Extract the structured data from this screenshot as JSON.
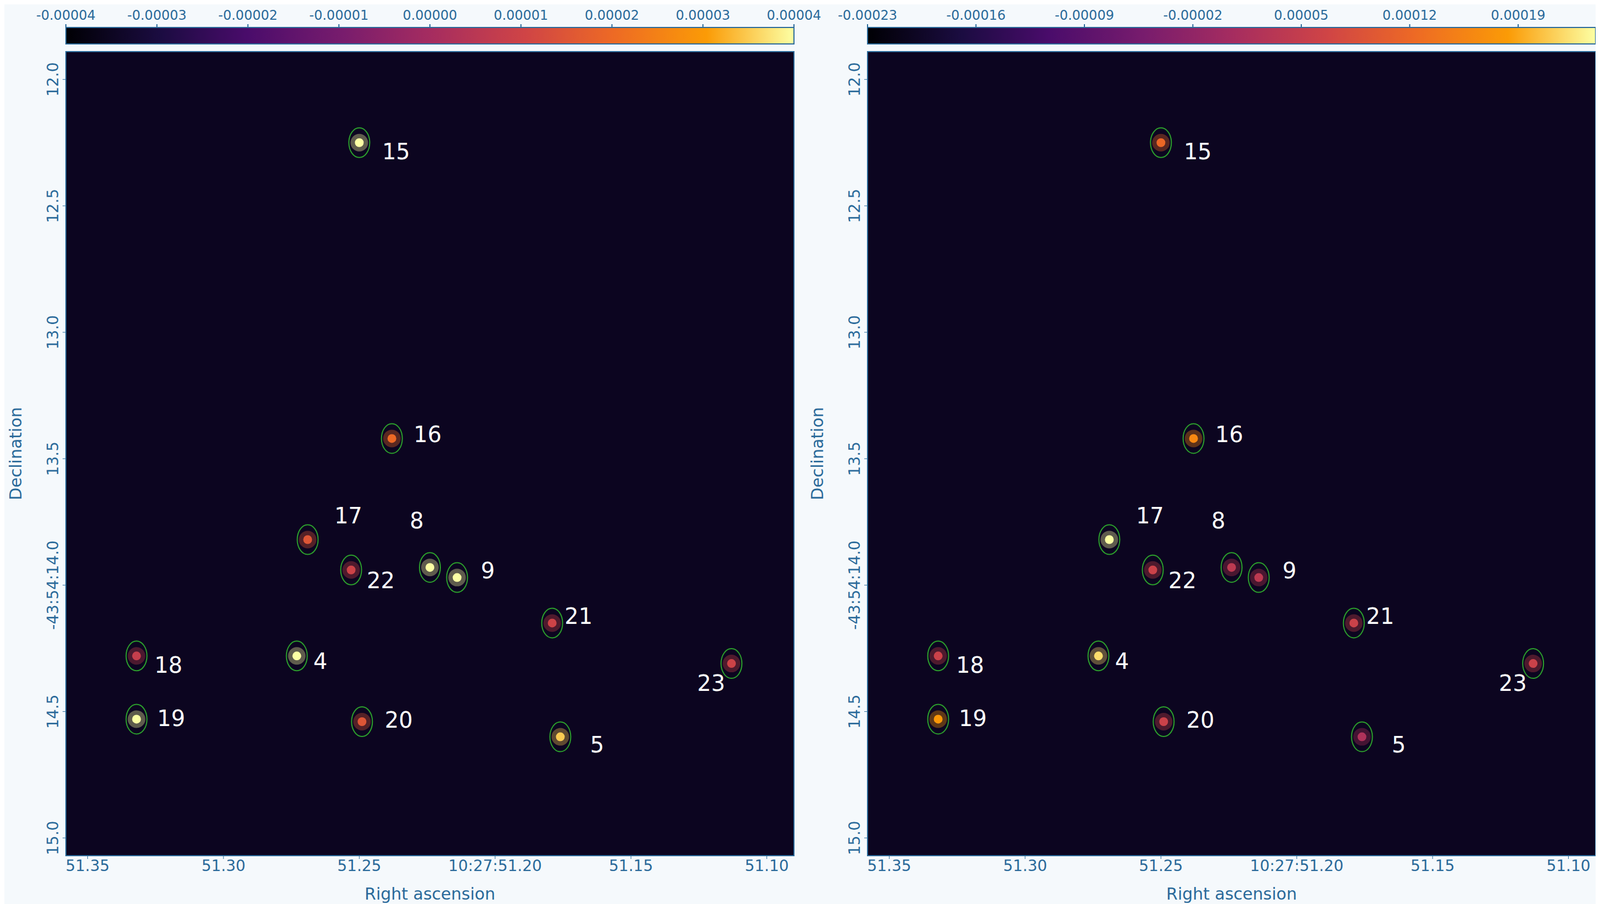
{
  "chart_data": [
    {
      "type": "scatter",
      "xlabel": "Right ascension",
      "ylabel": "Declination",
      "xlim": [
        51.358,
        51.09
      ],
      "xticks": [
        51.35,
        {
          "value": 51.3,
          "label": "51.30"
        },
        51.25,
        {
          "value": 51.2,
          "label": "10:27:51.20"
        },
        51.15,
        {
          "value": 51.1,
          "label": "51.10"
        }
      ],
      "ylim": [
        15.07,
        11.89
      ],
      "yticks": [
        {
          "value": 12,
          "label": "12.0"
        },
        12.5,
        {
          "value": 13,
          "label": "13.0"
        },
        13.5,
        {
          "value": 14,
          "label": "-43:54:14.0"
        },
        14.5,
        {
          "value": 15,
          "label": "15.0"
        }
      ],
      "colorbar": {
        "range": [
          -4e-05,
          4e-05
        ],
        "ticks": [
          {
            "value": -4e-05,
            "label": "-0.00004"
          },
          {
            "value": -3e-05,
            "label": "-0.00003"
          },
          {
            "value": -2e-05,
            "label": "-0.00002"
          },
          {
            "value": -1e-05,
            "label": "-0.00001"
          },
          {
            "value": 0,
            "label": "0.00000"
          },
          {
            "value": 1e-05,
            "label": "0.00001"
          },
          {
            "value": 2e-05,
            "label": "0.00002"
          },
          {
            "value": 3e-05,
            "label": "0.00003"
          },
          {
            "value": 4e-05,
            "label": "0.00004"
          }
        ]
      },
      "sources": {
        "labels": [
          "15",
          "16",
          "17",
          "22",
          "8",
          "9",
          "21",
          "18",
          "4",
          "23",
          "19",
          "20",
          "5"
        ],
        "x": [
          51.25,
          51.238,
          51.269,
          51.253,
          51.224,
          51.214,
          51.179,
          51.332,
          51.273,
          51.113,
          51.332,
          51.249,
          51.176
        ],
        "y": [
          12.25,
          13.42,
          13.82,
          13.94,
          13.93,
          13.97,
          14.15,
          14.28,
          14.28,
          14.31,
          14.53,
          14.54,
          14.6
        ],
        "peak": [
          4e-05,
          2e-05,
          1.5e-05,
          1e-05,
          4e-05,
          4e-05,
          1e-05,
          8e-06,
          4e-05,
          1e-05,
          4e-05,
          1.5e-05,
          3.5e-05
        ]
      }
    },
    {
      "type": "scatter",
      "xlabel": "Right ascension",
      "ylabel": "Declination",
      "xlim": [
        51.358,
        51.09
      ],
      "xticks": [
        51.35,
        {
          "value": 51.3,
          "label": "51.30"
        },
        51.25,
        {
          "value": 51.2,
          "label": "10:27:51.20"
        },
        51.15,
        {
          "value": 51.1,
          "label": "51.10"
        }
      ],
      "ylim": [
        15.07,
        11.89
      ],
      "yticks": [
        {
          "value": 12,
          "label": "12.0"
        },
        12.5,
        {
          "value": 13,
          "label": "13.0"
        },
        13.5,
        {
          "value": 14,
          "label": "-43:54:14.0"
        },
        14.5,
        {
          "value": 15,
          "label": "15.0"
        }
      ],
      "colorbar": {
        "range": [
          -0.00023,
          0.00024
        ],
        "ticks": [
          {
            "value": -0.00023,
            "label": "-0.00023"
          },
          {
            "value": -0.00016,
            "label": "-0.00016"
          },
          {
            "value": -9e-05,
            "label": "-0.00009"
          },
          {
            "value": -2e-05,
            "label": "-0.00002"
          },
          {
            "value": 5e-05,
            "label": "0.00005"
          },
          {
            "value": 0.00012,
            "label": "0.00012"
          },
          {
            "value": 0.00019,
            "label": "0.00019"
          }
        ]
      },
      "sources": {
        "labels": [
          "15",
          "16",
          "17",
          "22",
          "8",
          "9",
          "21",
          "18",
          "4",
          "23",
          "19",
          "20",
          "5"
        ],
        "x": [
          51.25,
          51.238,
          51.269,
          51.253,
          51.224,
          51.214,
          51.179,
          51.332,
          51.273,
          51.113,
          51.332,
          51.249,
          51.176
        ],
        "y": [
          12.25,
          13.42,
          13.82,
          13.94,
          13.93,
          13.97,
          14.15,
          14.28,
          14.28,
          14.31,
          14.53,
          14.54,
          14.6
        ],
        "peak": [
          0.00012,
          0.00016,
          0.00024,
          6e-05,
          4e-05,
          4e-05,
          6e-05,
          6e-05,
          0.00022,
          6e-05,
          0.00018,
          6e-05,
          2e-05
        ]
      }
    }
  ]
}
